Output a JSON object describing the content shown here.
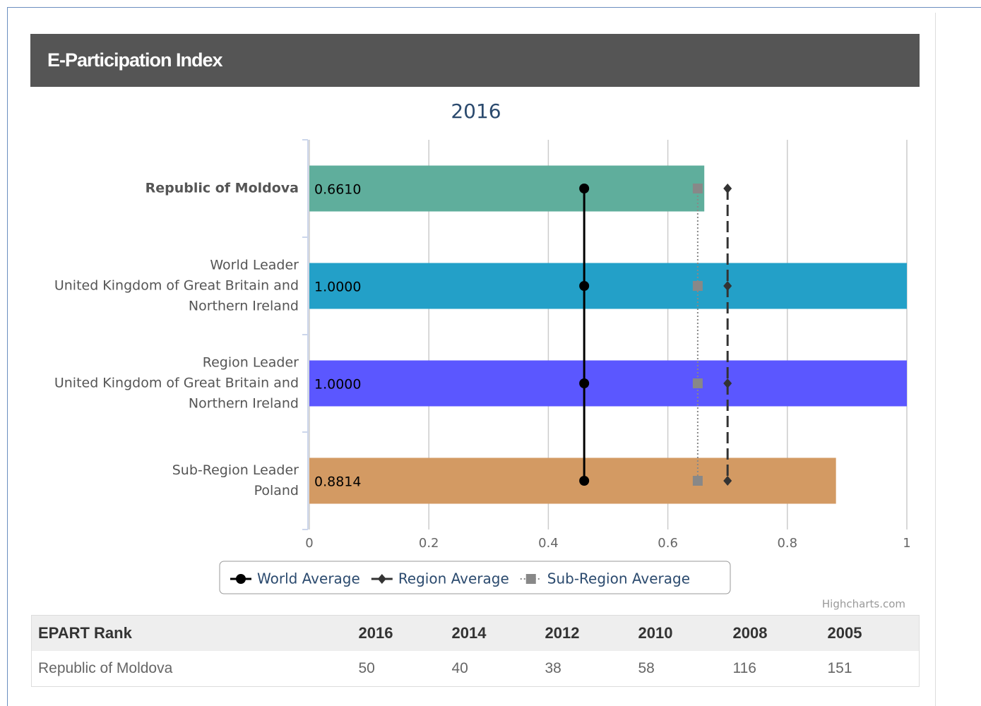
{
  "header": {
    "title": "E-Participation Index"
  },
  "chart_data": {
    "type": "bar",
    "orientation": "horizontal",
    "title": "2016",
    "categories": [
      "Republic of Moldova",
      "World Leader\nUnited Kingdom of Great Britain and Northern Ireland",
      "Region Leader\nUnited Kingdom of Great Britain and Northern Ireland",
      "Sub-Region Leader\nPoland"
    ],
    "values": [
      0.661,
      1,
      1,
      0.8814
    ],
    "value_labels": [
      "0.6610",
      "1.0000",
      "1.0000",
      "0.8814"
    ],
    "colors": [
      "#5fae9c",
      "#23a0c8",
      "#5b57ff",
      "#d39a63"
    ],
    "xlim": [
      0,
      1
    ],
    "xticks": [
      0,
      0.2,
      0.4,
      0.6,
      0.8,
      1
    ],
    "grid": true,
    "series": [
      {
        "name": "World Average",
        "type": "line",
        "color": "#000000",
        "marker": "circle",
        "dash": "solid",
        "values": [
          0.46,
          0.46,
          0.46,
          0.46
        ]
      },
      {
        "name": "Region Average",
        "type": "line",
        "color": "#333333",
        "marker": "diamond",
        "dash": "dashed",
        "values": [
          0.7,
          0.7,
          0.7,
          0.7
        ]
      },
      {
        "name": "Sub-Region Average",
        "type": "line",
        "color": "#888888",
        "marker": "square",
        "dash": "dotted",
        "values": [
          0.65,
          0.65,
          0.65,
          0.65
        ]
      }
    ],
    "credits": "Highcharts.com"
  },
  "table": {
    "columns": [
      "EPART Rank",
      "2016",
      "2014",
      "2012",
      "2010",
      "2008",
      "2005"
    ],
    "rows": [
      [
        "Republic of Moldova",
        50,
        40,
        38,
        58,
        116,
        151
      ]
    ]
  }
}
